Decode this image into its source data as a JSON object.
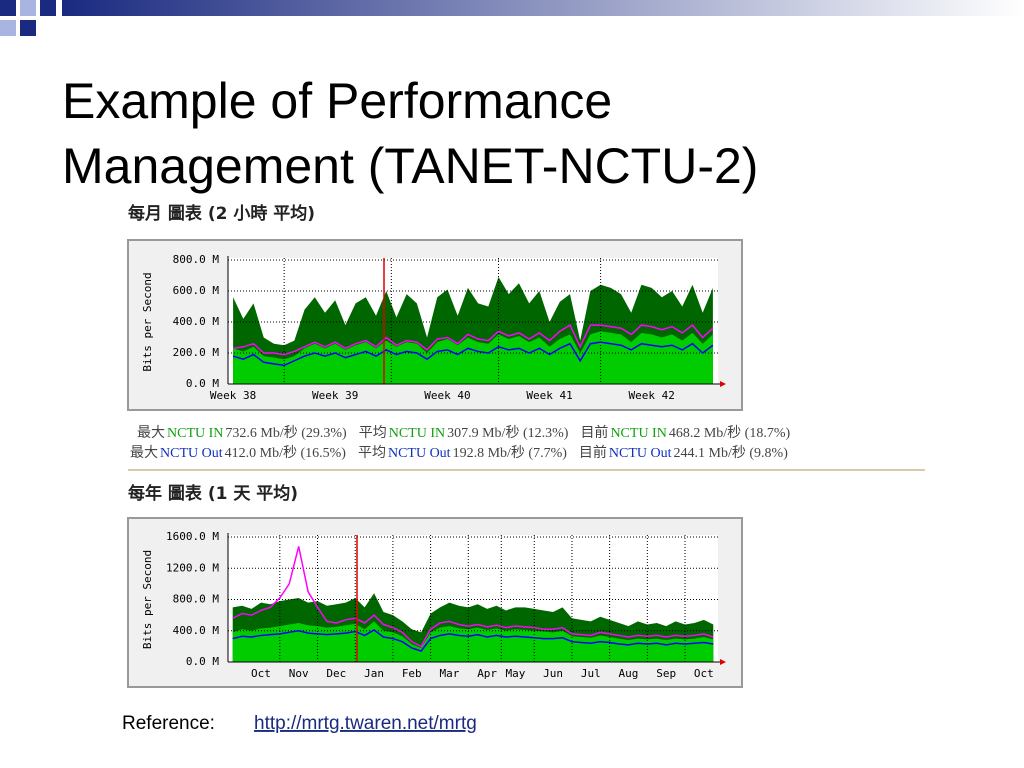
{
  "slide": {
    "title_lines": [
      "Example of Performance",
      "Management (TANET-NCTU-2)"
    ],
    "reference_label": "Reference:",
    "reference_url": "http://mrtg.twaren.net/mrtg"
  },
  "chart_data": [
    {
      "type": "area",
      "title": "每月 圖表 (2 小時 平均)",
      "y_label": "Bits per Second",
      "ylim": [
        0,
        800
      ],
      "yticks": [
        {
          "value": 0,
          "label": "0.0 M"
        },
        {
          "value": 200,
          "label": "200.0 M"
        },
        {
          "value": 400,
          "label": "400.0 M"
        },
        {
          "value": 600,
          "label": "600.0 M"
        },
        {
          "value": 800,
          "label": "800.0 M"
        }
      ],
      "grid": true,
      "categories": [
        "Week 38",
        null,
        null,
        null,
        null,
        null,
        null,
        null,
        null,
        null,
        "Week 39",
        null,
        null,
        null,
        null,
        null,
        null,
        null,
        null,
        null,
        null,
        "Week 40",
        null,
        null,
        null,
        null,
        null,
        null,
        null,
        null,
        null,
        "Week 41",
        null,
        null,
        null,
        null,
        null,
        null,
        null,
        null,
        null,
        "Week 42",
        null,
        null,
        null,
        null,
        null,
        null
      ],
      "series": [
        {
          "name": "NCTU IN",
          "color": "#00cc00",
          "max_color": "#006600",
          "values": [
            230,
            210,
            240,
            180,
            170,
            160,
            180,
            230,
            260,
            230,
            260,
            220,
            250,
            270,
            230,
            280,
            240,
            270,
            260,
            200,
            270,
            290,
            250,
            300,
            270,
            260,
            320,
            290,
            310,
            270,
            300,
            240,
            290,
            320,
            200,
            320,
            340,
            330,
            320,
            270,
            330,
            320,
            300,
            320,
            280,
            330,
            260,
            320
          ],
          "max_values": [
            560,
            420,
            520,
            300,
            260,
            250,
            280,
            480,
            560,
            460,
            540,
            380,
            520,
            560,
            440,
            600,
            430,
            580,
            520,
            300,
            560,
            610,
            440,
            620,
            520,
            500,
            690,
            580,
            650,
            520,
            600,
            400,
            530,
            580,
            280,
            600,
            640,
            620,
            580,
            460,
            640,
            620,
            560,
            600,
            500,
            640,
            460,
            620
          ]
        },
        {
          "name": "NCTU Out",
          "color": "#0000ff",
          "max_color": "#ff00ff",
          "values": [
            180,
            160,
            190,
            140,
            130,
            120,
            150,
            180,
            200,
            180,
            200,
            170,
            190,
            210,
            180,
            220,
            190,
            210,
            200,
            160,
            210,
            220,
            190,
            230,
            210,
            200,
            240,
            220,
            230,
            200,
            230,
            190,
            230,
            260,
            150,
            260,
            270,
            260,
            250,
            220,
            260,
            250,
            240,
            250,
            220,
            260,
            200,
            250
          ],
          "max_values": [
            230,
            240,
            260,
            200,
            200,
            190,
            210,
            240,
            270,
            240,
            270,
            230,
            260,
            280,
            240,
            300,
            250,
            280,
            270,
            220,
            290,
            300,
            260,
            320,
            290,
            280,
            340,
            310,
            330,
            290,
            330,
            280,
            340,
            380,
            240,
            380,
            380,
            370,
            360,
            320,
            380,
            370,
            350,
            370,
            330,
            380,
            300,
            360
          ]
        }
      ],
      "stats": [
        [
          {
            "label": "最大",
            "value": "732.6 Mb/秒 (29.3%)"
          },
          {
            "label": "平均",
            "value": "307.9 Mb/秒 (12.3%)"
          },
          {
            "label": "目前",
            "value": "468.2 Mb/秒 (18.7%)"
          }
        ],
        [
          {
            "label": "最大",
            "value": "412.0 Mb/秒 (16.5%)"
          },
          {
            "label": "平均",
            "value": "192.8 Mb/秒 (7.7%)"
          },
          {
            "label": "目前",
            "value": "244.1 Mb/秒 (9.8%)"
          }
        ]
      ]
    },
    {
      "type": "area",
      "title": "每年 圖表 (1 天 平均)",
      "y_label": "Bits per Second",
      "ylim": [
        0,
        1600
      ],
      "yticks": [
        {
          "value": 0,
          "label": "0.0 M"
        },
        {
          "value": 400,
          "label": "400.0 M"
        },
        {
          "value": 800,
          "label": "800.0 M"
        },
        {
          "value": 1200,
          "label": "1200.0 M"
        },
        {
          "value": 1600,
          "label": "1600.0 M"
        }
      ],
      "grid": true,
      "categories": [
        null,
        null,
        null,
        "Oct",
        null,
        null,
        null,
        "Nov",
        null,
        null,
        null,
        "Dec",
        null,
        null,
        null,
        "Jan",
        null,
        null,
        null,
        "Feb",
        null,
        null,
        null,
        "Mar",
        null,
        null,
        null,
        "Apr",
        null,
        null,
        "May",
        null,
        null,
        null,
        "Jun",
        null,
        null,
        null,
        "Jul",
        null,
        null,
        null,
        "Aug",
        null,
        null,
        null,
        "Sep",
        null,
        null,
        null,
        "Oct",
        null
      ],
      "series": [
        {
          "name": "NCTU IN",
          "color": "#00cc00",
          "max_color": "#006600",
          "values": [
            380,
            420,
            400,
            430,
            440,
            460,
            480,
            500,
            470,
            460,
            440,
            450,
            470,
            490,
            420,
            520,
            400,
            380,
            330,
            230,
            180,
            380,
            440,
            460,
            430,
            420,
            440,
            410,
            430,
            400,
            420,
            410,
            400,
            390,
            380,
            400,
            330,
            320,
            310,
            340,
            320,
            300,
            280,
            300,
            290,
            300,
            280,
            300,
            290,
            300,
            320,
            290
          ],
          "max_values": [
            700,
            720,
            680,
            760,
            740,
            780,
            800,
            820,
            760,
            780,
            720,
            740,
            760,
            820,
            700,
            880,
            640,
            600,
            520,
            420,
            380,
            620,
            700,
            760,
            720,
            700,
            740,
            680,
            720,
            660,
            700,
            700,
            680,
            660,
            640,
            700,
            560,
            540,
            520,
            580,
            540,
            500,
            460,
            520,
            480,
            500,
            460,
            520,
            480,
            500,
            540,
            480
          ]
        },
        {
          "name": "NCTU Out",
          "color": "#0000ff",
          "max_color": "#ff00ff",
          "values": [
            300,
            330,
            320,
            340,
            350,
            360,
            380,
            400,
            370,
            360,
            350,
            360,
            370,
            390,
            340,
            410,
            320,
            300,
            260,
            180,
            140,
            300,
            340,
            360,
            340,
            330,
            350,
            320,
            340,
            320,
            330,
            320,
            310,
            300,
            300,
            310,
            260,
            250,
            240,
            260,
            250,
            230,
            220,
            240,
            230,
            240,
            220,
            240,
            230,
            240,
            250,
            230
          ],
          "max_values": [
            560,
            620,
            600,
            660,
            700,
            820,
            1000,
            1480,
            900,
            700,
            520,
            500,
            540,
            560,
            500,
            600,
            480,
            440,
            380,
            260,
            200,
            420,
            500,
            520,
            480,
            460,
            480,
            450,
            470,
            440,
            460,
            450,
            440,
            420,
            420,
            440,
            360,
            350,
            340,
            380,
            360,
            340,
            320,
            340,
            330,
            340,
            320,
            340,
            330,
            340,
            360,
            320
          ]
        }
      ]
    }
  ]
}
